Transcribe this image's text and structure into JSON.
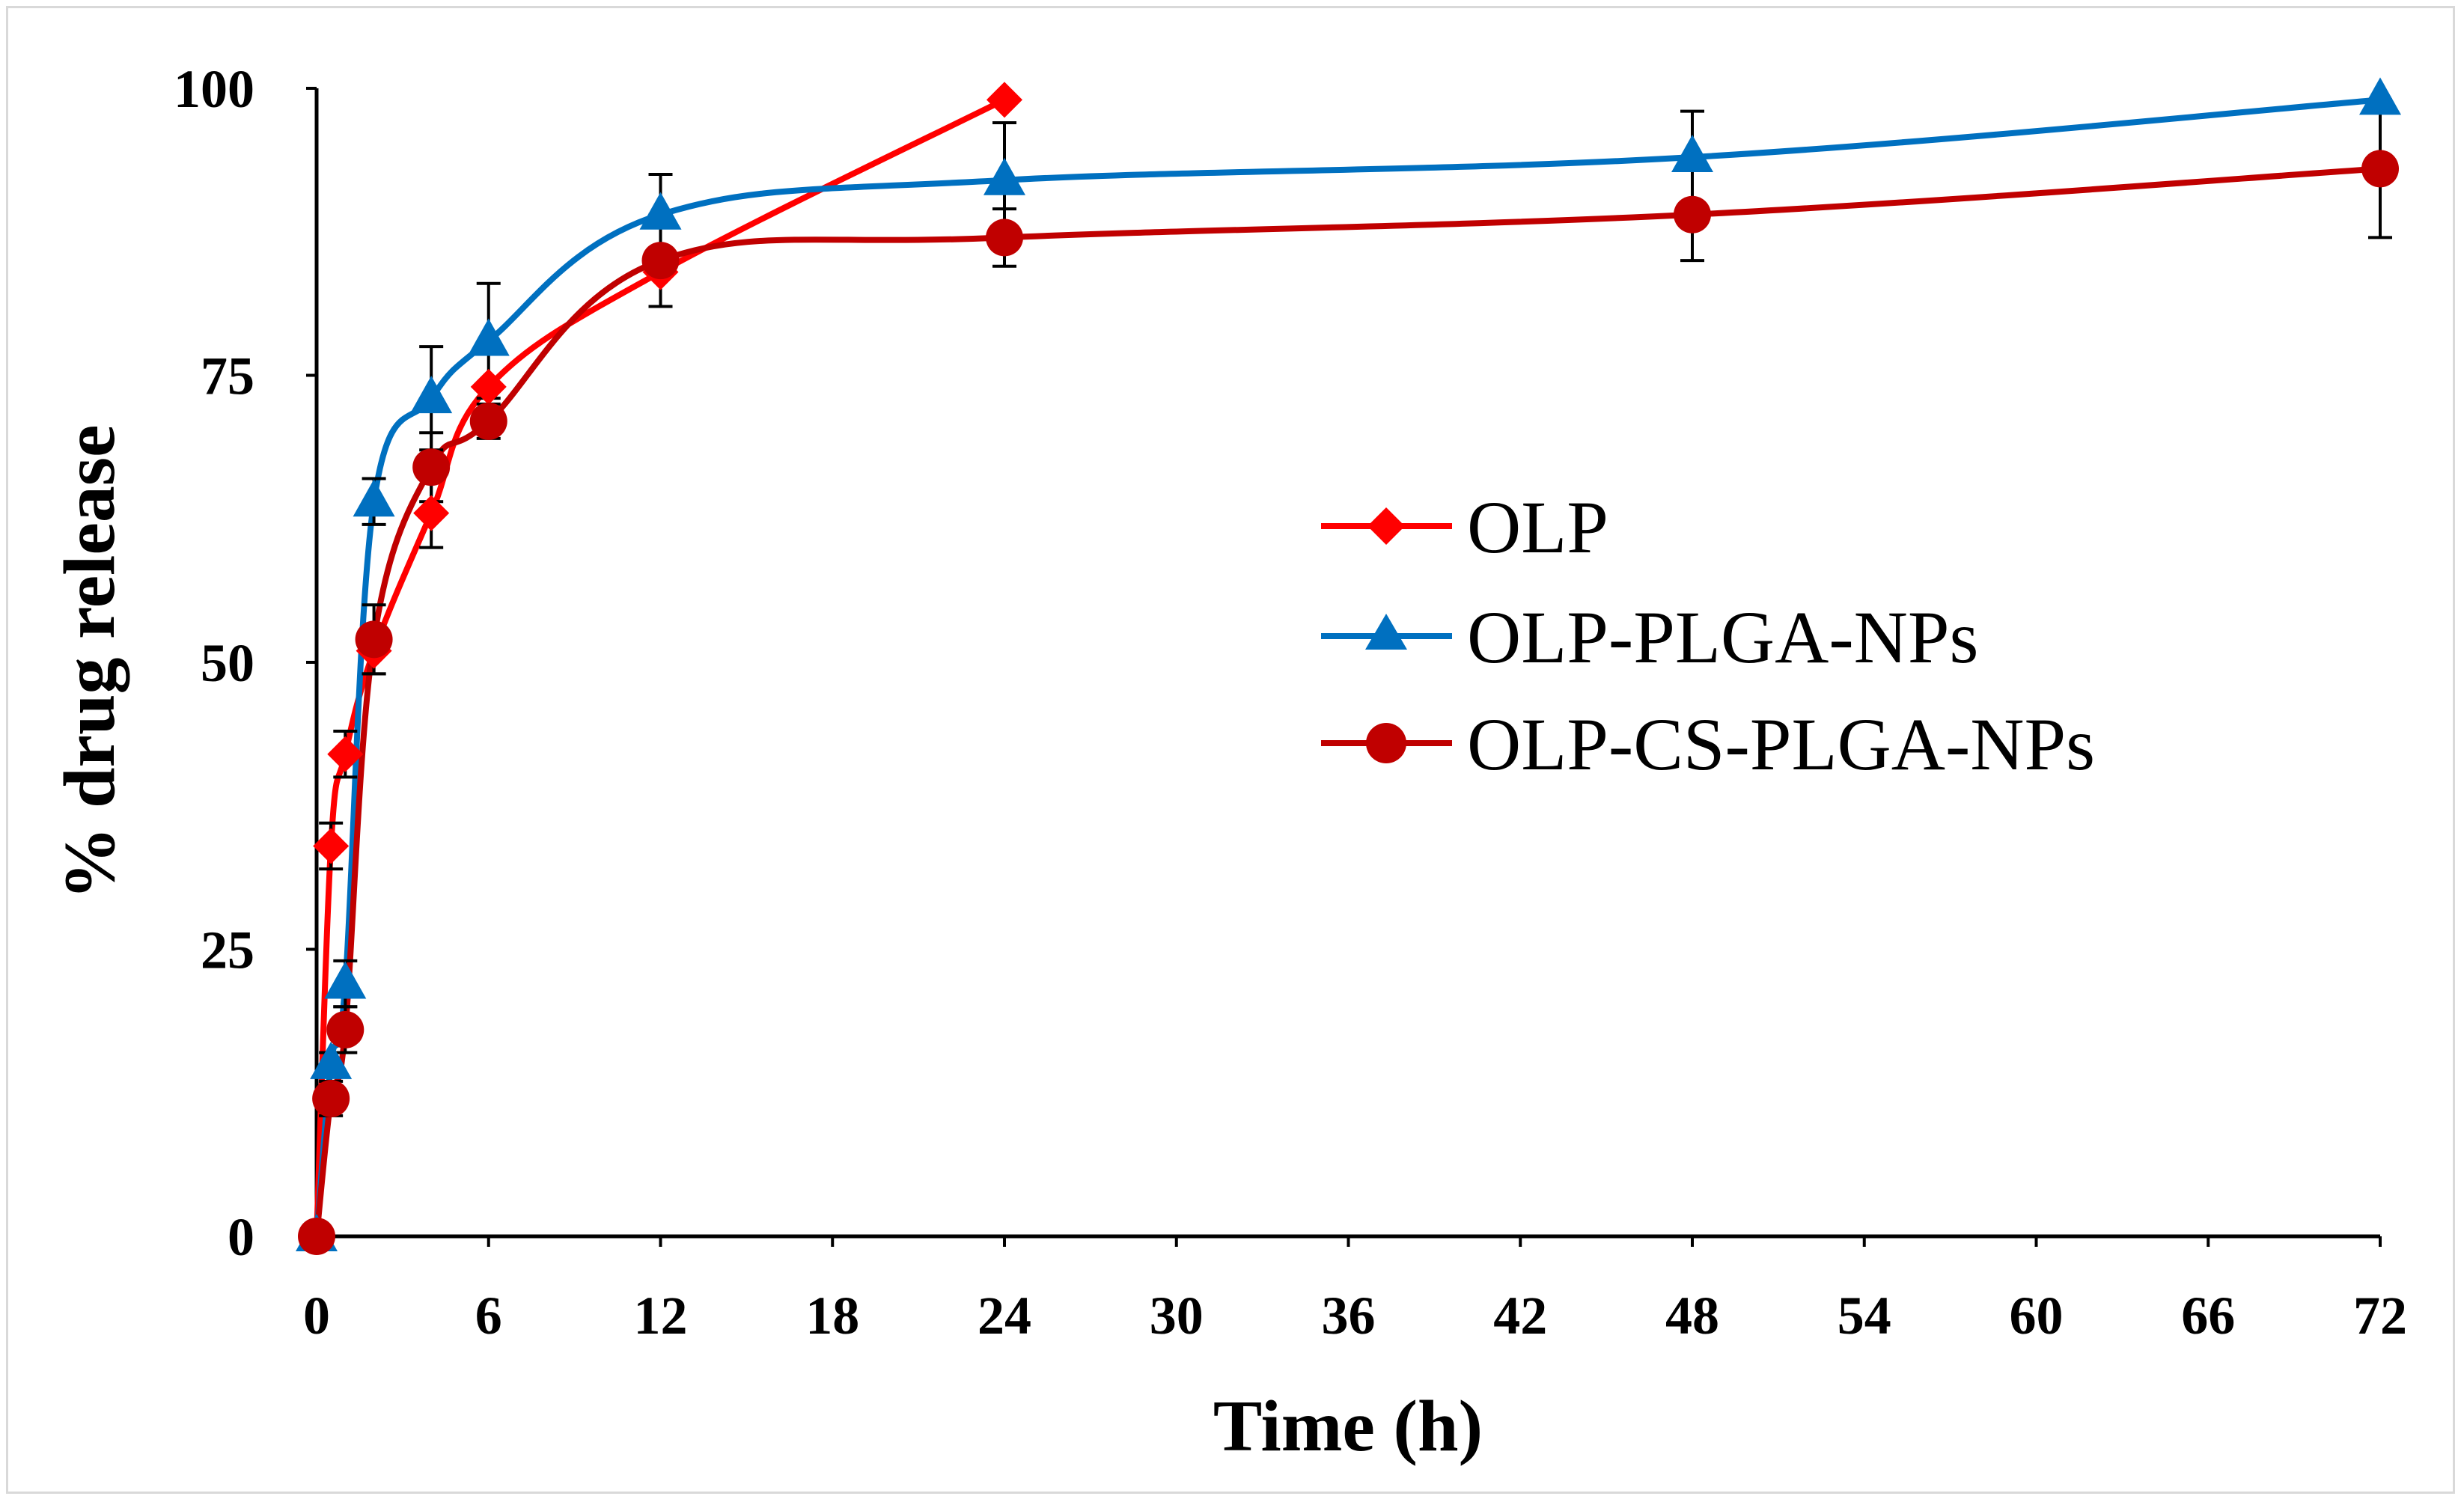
{
  "chart_data": {
    "type": "line",
    "title": "",
    "xlabel": "Time (h)",
    "ylabel": "% drug release",
    "xlim": [
      0,
      72
    ],
    "ylim": [
      0,
      100
    ],
    "x_ticks": [
      0,
      6,
      12,
      18,
      24,
      30,
      36,
      42,
      48,
      54,
      60,
      66,
      72
    ],
    "y_ticks": [
      0,
      25,
      50,
      75,
      100
    ],
    "grid": false,
    "legend_position": "right-center",
    "series": [
      {
        "name": "OLP",
        "color": "#ff0000",
        "marker": "diamond",
        "x": [
          0,
          0.5,
          1,
          2,
          4,
          6,
          12,
          24
        ],
        "y": [
          0,
          34,
          42,
          51,
          63,
          74,
          84,
          99
        ],
        "err": [
          0,
          2,
          2,
          2,
          3,
          0,
          0,
          0
        ]
      },
      {
        "name": "OLP-PLGA-NPs",
        "color": "#0070c0",
        "marker": "triangle",
        "x": [
          0,
          0.5,
          1,
          2,
          4,
          6,
          12,
          24,
          48,
          72
        ],
        "y": [
          0,
          15,
          22,
          64,
          73,
          78,
          89,
          92,
          94,
          99
        ],
        "err": [
          0,
          1,
          2,
          2,
          4.5,
          5,
          3.5,
          5,
          4,
          0
        ]
      },
      {
        "name": "OLP-CS-PLGA-NPs",
        "color": "#c00000",
        "marker": "circle",
        "x": [
          0,
          0.5,
          1,
          2,
          4,
          6,
          12,
          24,
          48,
          72
        ],
        "y": [
          0,
          12,
          18,
          52,
          67,
          71,
          85,
          87,
          89,
          93
        ],
        "err": [
          0,
          1.5,
          2,
          3,
          3,
          1.5,
          4,
          2.5,
          4,
          6
        ]
      }
    ]
  }
}
